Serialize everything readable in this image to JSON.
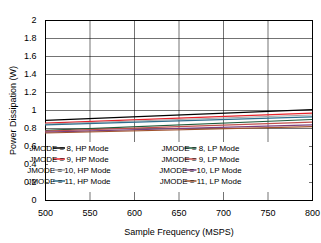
{
  "chart_data": {
    "type": "line",
    "x_label": "Sample Frequency (MSPS)",
    "y_label": "Power Dissipation (W)",
    "x": [
      500,
      800
    ],
    "series": [
      {
        "name": "JMODE = 8, HP Mode",
        "color": "#000000",
        "values": [
          0.89,
          1.01
        ]
      },
      {
        "name": "JMODE = 8, LP Mode",
        "color": "#1e5b3c",
        "values": [
          0.78,
          0.9
        ]
      },
      {
        "name": "JMODE = 9, HP Mode",
        "color": "#e8232b",
        "values": [
          0.86,
          0.97
        ]
      },
      {
        "name": "JMODE = 9, LP Mode",
        "color": "#c0504d",
        "values": [
          0.77,
          0.87
        ]
      },
      {
        "name": "JMODE = 10, HP Mode",
        "color": "#a6a6a6",
        "values": [
          0.85,
          0.95
        ]
      },
      {
        "name": "JMODE = 10, LP Mode",
        "color": "#7b3f7f",
        "values": [
          0.76,
          0.84
        ]
      },
      {
        "name": "JMODE = 11, HP Mode",
        "color": "#2e6f8e",
        "values": [
          0.84,
          0.93
        ]
      },
      {
        "name": "JMODE = 11, LP Mode",
        "color": "#a0522d",
        "values": [
          0.75,
          0.82
        ]
      }
    ],
    "xlim": [
      500,
      800
    ],
    "xticks": [
      500,
      550,
      600,
      650,
      700,
      750,
      800
    ],
    "ylim": [
      0,
      2
    ],
    "yticks": [
      0,
      0.2,
      0.4,
      0.6,
      0.8,
      1,
      1.2,
      1.4,
      1.6,
      1.8,
      2
    ],
    "grid": true,
    "legend": "bottom"
  }
}
